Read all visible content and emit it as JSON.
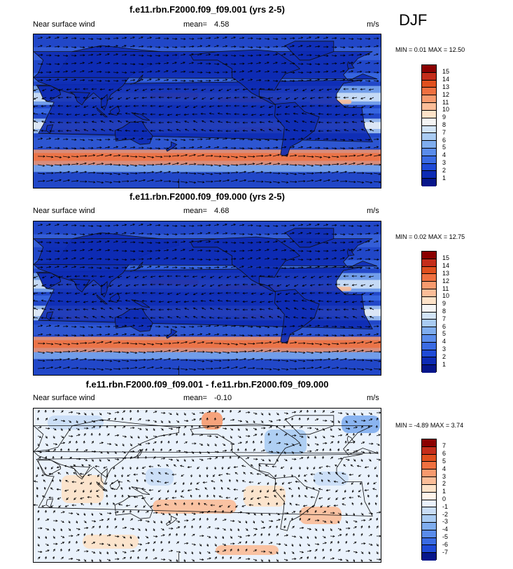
{
  "season": "DJF",
  "panels": [
    {
      "title": "f.e11.rbn.F2000.f09_f09.001 (yrs 2-5)",
      "left_label": "Near surface wind",
      "mean_label": "mean=",
      "mean_value": "4.58",
      "units": "m/s",
      "min_label": "MIN =",
      "min_value": "0.01",
      "max_label": "MAX =",
      "max_value": "12.50",
      "kind": "full"
    },
    {
      "title": "f.e11.rbn.F2000.f09_f09.000 (yrs 2-5)",
      "left_label": "Near surface wind",
      "mean_label": "mean=",
      "mean_value": "4.68",
      "units": "m/s",
      "min_label": "MIN =",
      "min_value": "0.02",
      "max_label": "MAX =",
      "max_value": "12.75",
      "kind": "full"
    },
    {
      "title": "f.e11.rbn.F2000.f09_f09.001 - f.e11.rbn.F2000.f09_f09.000",
      "left_label": "Near surface wind",
      "mean_label": "mean=",
      "mean_value": "-0.10",
      "units": "m/s",
      "min_label": "MIN =",
      "min_value": "-4.89",
      "max_label": "MAX =",
      "max_value": "3.74",
      "kind": "diff"
    }
  ],
  "colorbars": {
    "full": {
      "labels": [
        "15",
        "14",
        "13",
        "12",
        "11",
        "10",
        "9",
        "8",
        "7",
        "6",
        "5",
        "4",
        "3",
        "2",
        "1"
      ],
      "colors": [
        "#8b0000",
        "#c42d1a",
        "#e0501e",
        "#ef7040",
        "#f79a6e",
        "#fbbd98",
        "#fde2c8",
        "#f5f5f5",
        "#d2e4f7",
        "#a9cbf2",
        "#7fadee",
        "#5a8ceb",
        "#3a6be3",
        "#1f4ad6",
        "#0d2bb4",
        "#06168b"
      ]
    },
    "diff": {
      "labels": [
        "7",
        "6",
        "5",
        "4",
        "3",
        "2",
        "1",
        "0",
        "-1",
        "-2",
        "-3",
        "-4",
        "-5",
        "-6",
        "-7"
      ],
      "colors": [
        "#8b0000",
        "#c42d1a",
        "#e0501e",
        "#ef7040",
        "#f79a6e",
        "#fbbd98",
        "#fde2c8",
        "#fff4ea",
        "#eaf2fc",
        "#c9ddf6",
        "#a9cbf2",
        "#7fadee",
        "#5a8ceb",
        "#3a6be3",
        "#1f4ad6",
        "#06168b"
      ]
    }
  },
  "chart_data": [
    {
      "type": "heatmap",
      "title": "f.e11.rbn.F2000.f09_f09.001 (yrs 2-5)",
      "variable": "Near surface wind",
      "units": "m/s",
      "mean": 4.58,
      "min": 0.01,
      "max": 12.5,
      "colorbar_levels": [
        1,
        2,
        3,
        4,
        5,
        6,
        7,
        8,
        9,
        10,
        11,
        12,
        13,
        14,
        15
      ]
    },
    {
      "type": "heatmap",
      "title": "f.e11.rbn.F2000.f09_f09.000 (yrs 2-5)",
      "variable": "Near surface wind",
      "units": "m/s",
      "mean": 4.68,
      "min": 0.02,
      "max": 12.75,
      "colorbar_levels": [
        1,
        2,
        3,
        4,
        5,
        6,
        7,
        8,
        9,
        10,
        11,
        12,
        13,
        14,
        15
      ]
    },
    {
      "type": "heatmap",
      "title": "f.e11.rbn.F2000.f09_f09.001 - f.e11.rbn.F2000.f09_f09.000",
      "variable": "Near surface wind",
      "units": "m/s",
      "mean": -0.1,
      "min": -4.89,
      "max": 3.74,
      "colorbar_levels": [
        -7,
        -6,
        -5,
        -4,
        -3,
        -2,
        -1,
        0,
        1,
        2,
        3,
        4,
        5,
        6,
        7
      ]
    }
  ]
}
